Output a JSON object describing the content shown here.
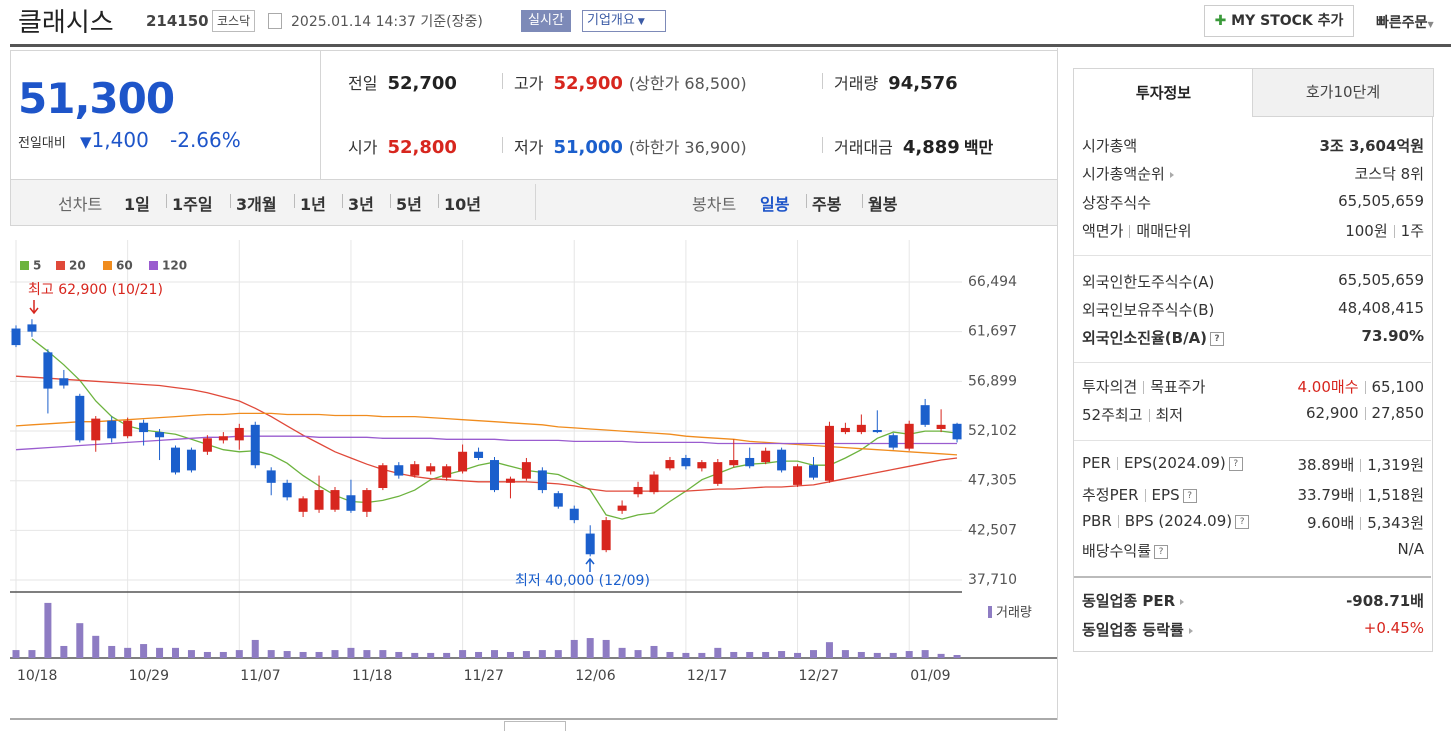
{
  "header": {
    "name": "클래시스",
    "code": "214150",
    "market": "코스닥",
    "datetime": "2025.01.14 14:37 기준(장중)",
    "realtime": "실시간",
    "overview": "기업개요",
    "mystock": "MY STOCK 추가",
    "quick_order": "빠른주문"
  },
  "quote": {
    "price": "51,300",
    "change_label": "전일대비",
    "change": "1,400",
    "change_rate": "-2.66%",
    "stats": [
      {
        "label": "전일",
        "value": "52,700"
      },
      {
        "label": "고가",
        "value": "52,900",
        "note": "(상한가 68,500)"
      },
      {
        "label": "거래량",
        "value": "94,576"
      },
      {
        "label": "시가",
        "value": "52,800"
      },
      {
        "label": "저가",
        "value": "51,000",
        "note": "(하한가 36,900)"
      },
      {
        "label": "거래대금",
        "value": "4,889",
        "unit": "백만"
      }
    ]
  },
  "toolbar": {
    "line_chart": "선차트",
    "line_periods": [
      "1일",
      "1주일",
      "3개월",
      "1년",
      "3년",
      "5년",
      "10년"
    ],
    "candle_chart": "봉차트",
    "candle_periods": [
      "일봉",
      "주봉",
      "월봉"
    ]
  },
  "chart_data": {
    "type": "candlestick",
    "categories": [
      "10/18",
      null,
      null,
      null,
      null,
      null,
      null,
      "10/29",
      null,
      null,
      null,
      null,
      null,
      null,
      "11/07",
      null,
      null,
      null,
      null,
      null,
      null,
      "11/18",
      null,
      null,
      null,
      null,
      null,
      null,
      "11/27",
      null,
      null,
      null,
      null,
      null,
      null,
      "12/06",
      null,
      null,
      null,
      null,
      null,
      null,
      "12/17",
      null,
      null,
      null,
      null,
      null,
      null,
      "12/27",
      null,
      null,
      null,
      null,
      null,
      null,
      "01/09",
      null,
      null,
      null
    ],
    "open": [
      62000,
      62400,
      59700,
      57200,
      55500,
      51200,
      53100,
      51600,
      52900,
      52000,
      50500,
      50300,
      50100,
      51200,
      51200,
      52700,
      48300,
      47100,
      44300,
      44500,
      44500,
      45900,
      44300,
      46600,
      48800,
      47800,
      48200,
      47600,
      48200,
      50100,
      49300,
      47100,
      47500,
      48300,
      46100,
      44600,
      42200,
      40600,
      44400,
      46000,
      46200,
      48500,
      49500,
      48500,
      47000,
      48800,
      49500,
      49100,
      50300,
      46900,
      48800,
      47300,
      52000,
      52000,
      52200,
      51700,
      50400,
      54600,
      52300,
      52800
    ],
    "high": [
      62300,
      62900,
      60000,
      58000,
      55700,
      53550,
      53500,
      53400,
      53200,
      52300,
      50700,
      50500,
      51700,
      52000,
      52800,
      53000,
      48600,
      47400,
      45800,
      47800,
      46700,
      47400,
      46600,
      49000,
      49100,
      49200,
      49000,
      48900,
      50800,
      50500,
      49600,
      47700,
      49500,
      48600,
      46300,
      44900,
      43000,
      43800,
      45400,
      47200,
      48200,
      49600,
      49800,
      49300,
      49400,
      51300,
      50500,
      50500,
      50500,
      48900,
      49600,
      53000,
      52900,
      53700,
      54100,
      51900,
      53100,
      55200,
      54200,
      52900
    ],
    "low": [
      60200,
      61200,
      53800,
      56200,
      51000,
      50100,
      51000,
      51400,
      50700,
      49300,
      47900,
      48100,
      49800,
      50900,
      50300,
      48500,
      45900,
      45400,
      43800,
      44200,
      44300,
      44200,
      43800,
      46400,
      47500,
      47600,
      47900,
      47300,
      48000,
      49300,
      46200,
      45600,
      47300,
      46100,
      44600,
      43200,
      40000,
      40400,
      44100,
      45700,
      46000,
      48300,
      48400,
      48200,
      46800,
      48600,
      48500,
      48900,
      48100,
      46700,
      47400,
      47100,
      51800,
      51800,
      51900,
      50300,
      50200,
      52500,
      52000,
      51000
    ],
    "close": [
      60400,
      61700,
      56200,
      56500,
      51200,
      53300,
      51400,
      53100,
      52000,
      51500,
      48100,
      48300,
      51400,
      51600,
      52400,
      48800,
      47100,
      45700,
      45600,
      46400,
      46400,
      44400,
      46400,
      48800,
      47800,
      48900,
      48700,
      48700,
      50100,
      49500,
      46400,
      47500,
      49100,
      46400,
      44800,
      43500,
      40200,
      43500,
      44900,
      46700,
      47900,
      49300,
      48700,
      49100,
      49100,
      49300,
      48700,
      50200,
      48300,
      48700,
      47600,
      52600,
      52400,
      52700,
      52000,
      50500,
      52800,
      52700,
      52700,
      51300
    ],
    "up_color": "#d7261e",
    "down_color": "#1b5fcc",
    "ma_series": [
      {
        "name": "5",
        "color": "#6cb33e",
        "values": [
          null,
          61000,
          59800,
          58500,
          57000,
          55000,
          53500,
          52600,
          52200,
          52000,
          51800,
          51300,
          50800,
          50300,
          50100,
          50200,
          49800,
          49000,
          47800,
          46800,
          45900,
          45300,
          45200,
          45400,
          45800,
          46400,
          47400,
          47900,
          48300,
          48800,
          49100,
          48700,
          48300,
          48100,
          47900,
          47200,
          46400,
          44000,
          43600,
          44000,
          44200,
          45300,
          46300,
          47400,
          48000,
          48600,
          48900,
          49000,
          49200,
          49200,
          48800,
          48800,
          49500,
          50300,
          51400,
          52000,
          51800,
          52100,
          52100,
          51900
        ]
      },
      {
        "name": "20",
        "color": "#e0493a",
        "values": [
          57400,
          57300,
          57200,
          57100,
          57000,
          56900,
          56800,
          56700,
          56600,
          56500,
          56300,
          56100,
          55800,
          55400,
          55000,
          54300,
          53500,
          52600,
          51700,
          50900,
          50100,
          49500,
          48900,
          48400,
          48000,
          47700,
          47500,
          47400,
          47300,
          47200,
          47200,
          47200,
          47200,
          47100,
          47000,
          46800,
          46500,
          46300,
          46300,
          46300,
          46300,
          46300,
          46300,
          46400,
          46500,
          46500,
          46600,
          46700,
          46700,
          46800,
          46900,
          47200,
          47500,
          47800,
          48100,
          48400,
          48700,
          49000,
          49300,
          49500
        ]
      },
      {
        "name": "60",
        "color": "#f08c1e",
        "values": [
          52600,
          52700,
          52800,
          52900,
          53000,
          53000,
          53100,
          53200,
          53300,
          53400,
          53500,
          53600,
          53700,
          53700,
          53800,
          53800,
          53800,
          53700,
          53700,
          53700,
          53600,
          53600,
          53600,
          53500,
          53500,
          53500,
          53400,
          53300,
          53200,
          53100,
          53000,
          52900,
          52800,
          52700,
          52500,
          52400,
          52300,
          52200,
          52100,
          52000,
          51900,
          51800,
          51600,
          51500,
          51400,
          51300,
          51100,
          51000,
          50900,
          50800,
          50700,
          50600,
          50500,
          50400,
          50300,
          50200,
          50100,
          50000,
          49900,
          49800
        ]
      },
      {
        "name": "120",
        "color": "#9a5ccf",
        "values": [
          50300,
          50400,
          50500,
          50600,
          50700,
          50800,
          50900,
          51000,
          51100,
          51200,
          51300,
          51400,
          51500,
          51500,
          51600,
          51600,
          51600,
          51600,
          51600,
          51500,
          51500,
          51500,
          51500,
          51400,
          51400,
          51400,
          51400,
          51300,
          51300,
          51300,
          51300,
          51200,
          51200,
          51200,
          51200,
          51100,
          51100,
          51100,
          51100,
          51000,
          51000,
          51000,
          51000,
          51000,
          50900,
          50900,
          50900,
          50900,
          50900,
          50900,
          50900,
          50900,
          50900,
          50900,
          50900,
          50900,
          50900,
          50900,
          50900,
          50900
        ]
      }
    ],
    "ylim": [
      36750,
      70550
    ],
    "yticks": [
      {
        "value": 66494,
        "label": "66,494"
      },
      {
        "value": 61697,
        "label": "61,697"
      },
      {
        "value": 56899,
        "label": "56,899"
      },
      {
        "value": 52102,
        "label": "52,102"
      },
      {
        "value": 47305,
        "label": "47,305"
      },
      {
        "value": 42507,
        "label": "42,507"
      },
      {
        "value": 37710,
        "label": "37,710"
      }
    ],
    "grid": true,
    "annotations": [
      "최고 62,900 (10/21)",
      "최저 40,000 (12/09)"
    ],
    "volume": {
      "name": "거래량",
      "color": "#8e7cc3",
      "ylim": [
        0,
        1800000
      ],
      "values": [
        250000,
        250000,
        1740000,
        380000,
        1100000,
        700000,
        380000,
        320000,
        440000,
        320000,
        320000,
        250000,
        190000,
        190000,
        250000,
        570000,
        250000,
        220000,
        190000,
        190000,
        250000,
        320000,
        250000,
        250000,
        190000,
        160000,
        160000,
        160000,
        250000,
        190000,
        250000,
        190000,
        220000,
        250000,
        250000,
        570000,
        630000,
        570000,
        320000,
        250000,
        380000,
        190000,
        160000,
        160000,
        320000,
        190000,
        190000,
        190000,
        220000,
        160000,
        250000,
        500000,
        250000,
        190000,
        160000,
        160000,
        220000,
        250000,
        130000,
        94576
      ]
    }
  },
  "info": {
    "tabs": [
      "투자정보",
      "호가10단계"
    ],
    "groups": [
      [
        {
          "labels": [
            "시가총액"
          ],
          "values": [
            "3조 3,604억원"
          ]
        },
        {
          "labels": [
            "시가총액순위"
          ],
          "values": [
            "코스닥 8위"
          ]
        },
        {
          "labels": [
            "상장주식수"
          ],
          "values": [
            "65,505,659"
          ]
        },
        {
          "labels": [
            "액면가",
            "매매단위"
          ],
          "values": [
            "100원",
            "1주"
          ]
        }
      ],
      [
        {
          "labels": [
            "외국인한도주식수(A)"
          ],
          "values": [
            "65,505,659"
          ]
        },
        {
          "labels": [
            "외국인보유주식수(B)"
          ],
          "values": [
            "48,408,415"
          ]
        },
        {
          "labels": [
            "외국인소진율(B/A)"
          ],
          "values": [
            "73.90%"
          ]
        }
      ],
      [
        {
          "labels": [
            "투자의견",
            "목표주가"
          ],
          "values": [
            "4.00매수",
            "65,100"
          ]
        },
        {
          "labels": [
            "52주최고",
            "최저"
          ],
          "values": [
            "62,900",
            "27,850"
          ]
        }
      ],
      [
        {
          "labels": [
            "PER",
            "EPS(2024.09)"
          ],
          "values": [
            "38.89배",
            "1,319원"
          ]
        },
        {
          "labels": [
            "추정PER",
            "EPS"
          ],
          "values": [
            "33.79배",
            "1,518원"
          ]
        },
        {
          "labels": [
            "PBR",
            "BPS (2024.09)"
          ],
          "values": [
            "9.60배",
            "5,343원"
          ]
        },
        {
          "labels": [
            "배당수익률"
          ],
          "values": [
            "N/A"
          ]
        }
      ],
      [
        {
          "labels": [
            "동일업종 PER"
          ],
          "values": [
            "-908.71배"
          ]
        },
        {
          "labels": [
            "동일업종 등락률"
          ],
          "values": [
            "+0.45%"
          ]
        }
      ]
    ]
  }
}
